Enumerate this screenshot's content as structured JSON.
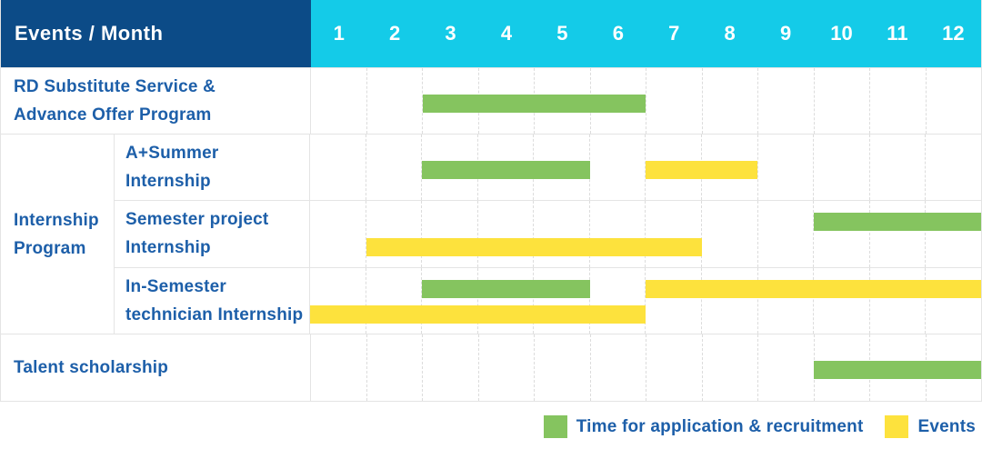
{
  "header": {
    "title": "Events / Month",
    "months": [
      "1",
      "2",
      "3",
      "4",
      "5",
      "6",
      "7",
      "8",
      "9",
      "10",
      "11",
      "12"
    ]
  },
  "colors": {
    "application": "#85c45f",
    "events": "#fde23d",
    "header_navy": "#0c4b87",
    "header_cyan": "#14cbe8",
    "label_blue": "#1d5fa9"
  },
  "rows": {
    "rd": {
      "label": [
        "RD Substitute Service &",
        "Advance Offer Program"
      ],
      "bars": [
        {
          "type": "application",
          "start": 3,
          "end": 6,
          "track": "single"
        }
      ]
    },
    "group": {
      "label": [
        "Internship",
        "Program"
      ]
    },
    "a_summer": {
      "label": [
        "A+Summer",
        "Internship"
      ],
      "bars": [
        {
          "type": "application",
          "start": 3,
          "end": 5,
          "track": "single"
        },
        {
          "type": "events",
          "start": 7,
          "end": 8,
          "track": "single"
        }
      ]
    },
    "semester_project": {
      "label": [
        "Semester project",
        "Internship"
      ],
      "bars": [
        {
          "type": "application",
          "start": 10,
          "end": 12,
          "track": "top"
        },
        {
          "type": "events",
          "start": 2,
          "end": 7,
          "track": "bottom"
        }
      ]
    },
    "in_semester": {
      "label": [
        "In-Semester",
        "technician Internship"
      ],
      "bars": [
        {
          "type": "application",
          "start": 3,
          "end": 5,
          "track": "top"
        },
        {
          "type": "events",
          "start": 7,
          "end": 12,
          "track": "top"
        },
        {
          "type": "events",
          "start": 1,
          "end": 6,
          "track": "bottom"
        }
      ]
    },
    "talent": {
      "label": [
        "Talent scholarship"
      ],
      "bars": [
        {
          "type": "application",
          "start": 10,
          "end": 12,
          "track": "single"
        }
      ]
    }
  },
  "legend": [
    {
      "type": "application",
      "label": "Time for application & recruitment"
    },
    {
      "type": "events",
      "label": "Events"
    }
  ],
  "chart_data": {
    "type": "gantt",
    "title": "Events / Month",
    "x_unit": "month",
    "x_range": [
      1,
      12
    ],
    "x_ticks": [
      1,
      2,
      3,
      4,
      5,
      6,
      7,
      8,
      9,
      10,
      11,
      12
    ],
    "legend": [
      "Time for application & recruitment",
      "Events"
    ],
    "legend_position": "bottom-right",
    "rows": [
      {
        "group": null,
        "task": "RD Substitute Service & Advance Offer Program",
        "application_recruitment_months": [
          [
            3,
            6
          ]
        ],
        "events_months": []
      },
      {
        "group": "Internship Program",
        "task": "A+Summer Internship",
        "application_recruitment_months": [
          [
            3,
            5
          ]
        ],
        "events_months": [
          [
            7,
            8
          ]
        ]
      },
      {
        "group": "Internship Program",
        "task": "Semester project Internship",
        "application_recruitment_months": [
          [
            10,
            12
          ]
        ],
        "events_months": [
          [
            2,
            7
          ]
        ]
      },
      {
        "group": "Internship Program",
        "task": "In-Semester technician Internship",
        "application_recruitment_months": [
          [
            3,
            5
          ]
        ],
        "events_months": [
          [
            7,
            12
          ],
          [
            1,
            6
          ]
        ]
      },
      {
        "group": null,
        "task": "Talent scholarship",
        "application_recruitment_months": [
          [
            10,
            12
          ]
        ],
        "events_months": []
      }
    ]
  }
}
